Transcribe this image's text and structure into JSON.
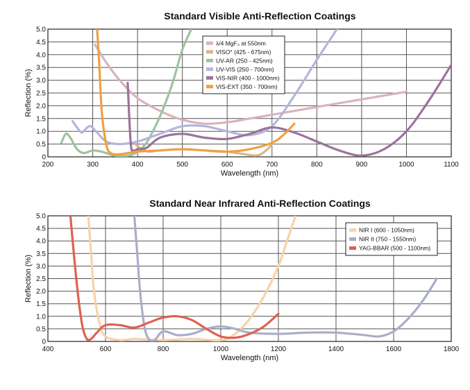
{
  "chart_data": [
    {
      "type": "line",
      "title": "Standard Visible Anti-Reflection Coatings",
      "xlabel": "Wavelength (nm)",
      "ylabel": "Reflection (%)",
      "xlim": [
        200,
        1100
      ],
      "ylim": [
        0,
        5
      ],
      "xticks": [
        200,
        300,
        400,
        500,
        600,
        700,
        800,
        900,
        1000,
        1100
      ],
      "yticks": [
        "0",
        "0.5",
        "1.0",
        "1.5",
        "2.0",
        "2.5",
        "3.0",
        "3.5",
        "4.0",
        "4.5",
        "5.0"
      ],
      "yticks_values": [
        0,
        0.5,
        1,
        1.5,
        2,
        2.5,
        3,
        3.5,
        4,
        4.5,
        5
      ],
      "grid": true,
      "legend": "top-center",
      "series": [
        {
          "name": "λ/4 MgF₂ at 550nm",
          "color": "#d9b3bd",
          "x": [
            305,
            330,
            360,
            400,
            450,
            500,
            550,
            600,
            650,
            700,
            750,
            800,
            850,
            900,
            950,
            1000
          ],
          "y": [
            4.4,
            3.7,
            3.0,
            2.3,
            1.8,
            1.45,
            1.3,
            1.35,
            1.5,
            1.65,
            1.8,
            1.95,
            2.1,
            2.25,
            2.4,
            2.55
          ]
        },
        {
          "name": "VISO° (425 - 675nm)",
          "color": "#d9b48f",
          "x": [
            395,
            410,
            425,
            450,
            500,
            550,
            600,
            640,
            660,
            675,
            690,
            700
          ],
          "y": [
            0.5,
            0.3,
            0.2,
            0.25,
            0.3,
            0.25,
            0.2,
            0.1,
            0.05,
            0.1,
            0.3,
            0.5
          ]
        },
        {
          "name": "UV-AR (250 - 425nm)",
          "color": "#9fc29f",
          "x": [
            230,
            240,
            250,
            265,
            280,
            300,
            320,
            350,
            380,
            400,
            420,
            440,
            460,
            480,
            500,
            520
          ],
          "y": [
            0.55,
            0.9,
            0.75,
            0.3,
            0.15,
            0.25,
            0.2,
            0.05,
            0.05,
            0.2,
            0.55,
            1.2,
            2.0,
            3.0,
            4.2,
            5.0
          ]
        },
        {
          "name": "UV-VIS (250 - 700nm)",
          "color": "#b3b6dd",
          "x": [
            255,
            265,
            275,
            285,
            295,
            310,
            330,
            360,
            400,
            450,
            500,
            550,
            600,
            650,
            700,
            750,
            800,
            845
          ],
          "y": [
            1.4,
            1.15,
            0.95,
            1.1,
            1.2,
            0.95,
            0.6,
            0.5,
            0.6,
            0.9,
            1.2,
            1.2,
            1.0,
            0.85,
            1.2,
            2.4,
            3.8,
            5.0
          ]
        },
        {
          "name": "VIS-NIR (400 - 1000nm)",
          "color": "#9b739b",
          "x": [
            378,
            385,
            392,
            400,
            420,
            450,
            500,
            550,
            600,
            650,
            700,
            750,
            800,
            850,
            900,
            950,
            1000,
            1050,
            1100
          ],
          "y": [
            2.9,
            0.5,
            0.25,
            0.3,
            0.35,
            0.75,
            0.9,
            0.75,
            0.7,
            0.9,
            1.15,
            0.95,
            0.6,
            0.25,
            0.05,
            0.3,
            1.0,
            2.2,
            3.6
          ]
        },
        {
          "name": "VIS-EXT (350 - 700nm)",
          "color": "#f0a040",
          "x": [
            310,
            315,
            320,
            330,
            340,
            360,
            400,
            450,
            500,
            550,
            600,
            650,
            700,
            725,
            750
          ],
          "y": [
            5.0,
            3.5,
            1.8,
            0.5,
            0.15,
            0.1,
            0.2,
            0.25,
            0.3,
            0.25,
            0.2,
            0.3,
            0.55,
            0.85,
            1.3
          ]
        }
      ]
    },
    {
      "type": "line",
      "title": "Standard Near Infrared Anti-Reflection Coatings",
      "xlabel": "Wavelength (nm)",
      "ylabel": "Reflection (%)",
      "xlim": [
        400,
        1800
      ],
      "ylim": [
        0,
        5
      ],
      "xticks": [
        400,
        600,
        800,
        1000,
        1200,
        1400,
        1600,
        1800
      ],
      "yticks": [
        "0",
        "0.5",
        "1.0",
        "1.5",
        "2.0",
        "2.5",
        "3.0",
        "3.5",
        "4.0",
        "4.5",
        "5.0"
      ],
      "yticks_values": [
        0,
        0.5,
        1,
        1.5,
        2,
        2.5,
        3,
        3.5,
        4,
        4.5,
        5
      ],
      "grid": true,
      "legend": "top-right",
      "series": [
        {
          "name": "NIR I (600 - 1050nm)",
          "color": "#f8d2a8",
          "x": [
            540,
            550,
            560,
            580,
            600,
            650,
            700,
            800,
            900,
            1000,
            1050,
            1100,
            1150,
            1200,
            1230,
            1260
          ],
          "y": [
            5.0,
            3.5,
            2.0,
            0.7,
            0.2,
            0.05,
            0.1,
            0.05,
            0.1,
            0.05,
            0.3,
            0.9,
            1.8,
            3.0,
            4.0,
            5.0
          ]
        },
        {
          "name": "NIR II (750 - 1550nm)",
          "color": "#a9aec9",
          "x": [
            700,
            710,
            720,
            735,
            750,
            770,
            800,
            850,
            900,
            950,
            1000,
            1050,
            1100,
            1200,
            1300,
            1400,
            1500,
            1550,
            1600,
            1650,
            1700,
            1750
          ],
          "y": [
            5.0,
            3.5,
            2.0,
            0.6,
            0.1,
            0.05,
            0.4,
            0.25,
            0.3,
            0.5,
            0.6,
            0.5,
            0.35,
            0.3,
            0.35,
            0.35,
            0.25,
            0.2,
            0.4,
            0.9,
            1.6,
            2.5
          ]
        },
        {
          "name": "YAG-BBAR (500 - 1100nm)",
          "color": "#e06050",
          "x": [
            478,
            490,
            505,
            520,
            535,
            550,
            570,
            600,
            650,
            700,
            750,
            800,
            850,
            900,
            950,
            1000,
            1050,
            1100,
            1150,
            1200
          ],
          "y": [
            5.0,
            3.5,
            1.8,
            0.6,
            0.1,
            0.1,
            0.35,
            0.65,
            0.65,
            0.55,
            0.75,
            0.95,
            1.0,
            0.85,
            0.5,
            0.2,
            0.15,
            0.3,
            0.6,
            1.1
          ]
        }
      ]
    }
  ]
}
